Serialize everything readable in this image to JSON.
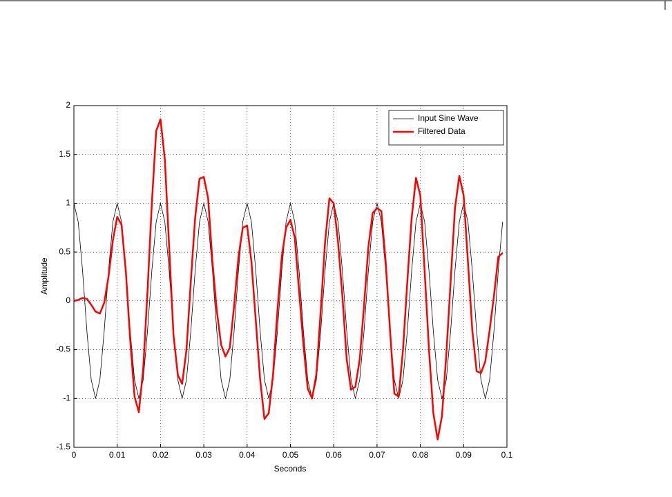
{
  "chart_data": {
    "type": "line",
    "xlabel": "Seconds",
    "ylabel": "Amplitude",
    "x": [
      0,
      0.001,
      0.002,
      0.003,
      0.004,
      0.005,
      0.006,
      0.007,
      0.008,
      0.009,
      0.01,
      0.011,
      0.012,
      0.013,
      0.014,
      0.015,
      0.016,
      0.017,
      0.018,
      0.019,
      0.02,
      0.021,
      0.022,
      0.023,
      0.024,
      0.025,
      0.026,
      0.027,
      0.028,
      0.029,
      0.03,
      0.031,
      0.032,
      0.033,
      0.034,
      0.035,
      0.036,
      0.037,
      0.038,
      0.039,
      0.04,
      0.041,
      0.042,
      0.043,
      0.044,
      0.045,
      0.046,
      0.047,
      0.048,
      0.049,
      0.05,
      0.051,
      0.052,
      0.053,
      0.054,
      0.055,
      0.056,
      0.057,
      0.058,
      0.059,
      0.06,
      0.061,
      0.062,
      0.063,
      0.064,
      0.065,
      0.066,
      0.067,
      0.068,
      0.069,
      0.07,
      0.071,
      0.072,
      0.073,
      0.074,
      0.075,
      0.076,
      0.077,
      0.078,
      0.079,
      0.08,
      0.081,
      0.082,
      0.083,
      0.084,
      0.085,
      0.086,
      0.087,
      0.088,
      0.089,
      0.09,
      0.091,
      0.092,
      0.093,
      0.094,
      0.095,
      0.096,
      0.097,
      0.098,
      0.099
    ],
    "series": [
      {
        "name": "Input Sine Wave",
        "color": "#000000",
        "width": 0.8,
        "values": [
          1,
          0.809,
          0.309,
          -0.309,
          -0.809,
          -1,
          -0.809,
          -0.309,
          0.309,
          0.809,
          1,
          0.809,
          0.309,
          -0.309,
          -0.809,
          -1,
          -0.809,
          -0.309,
          0.309,
          0.809,
          1,
          0.809,
          0.309,
          -0.309,
          -0.809,
          -1,
          -0.809,
          -0.309,
          0.309,
          0.809,
          1,
          0.809,
          0.309,
          -0.309,
          -0.809,
          -1,
          -0.809,
          -0.309,
          0.309,
          0.809,
          1,
          0.809,
          0.309,
          -0.309,
          -0.809,
          -1,
          -0.809,
          -0.309,
          0.309,
          0.809,
          1,
          0.809,
          0.309,
          -0.309,
          -0.809,
          -1,
          -0.809,
          -0.309,
          0.309,
          0.809,
          1,
          0.809,
          0.309,
          -0.309,
          -0.809,
          -1,
          -0.809,
          -0.309,
          0.309,
          0.809,
          1,
          0.809,
          0.309,
          -0.309,
          -0.809,
          -1,
          -0.809,
          -0.309,
          0.309,
          0.809,
          1,
          0.809,
          0.309,
          -0.309,
          -0.809,
          -1,
          -0.809,
          -0.309,
          0.309,
          0.809,
          1,
          0.809,
          0.309,
          -0.309,
          -0.809,
          -1,
          -0.809,
          -0.309,
          0.309,
          0.809
        ]
      },
      {
        "name": "Filtered Data",
        "color": "#ff0000",
        "width": 2.5,
        "values": [
          0,
          0.01,
          0.03,
          0.02,
          -0.04,
          -0.11,
          -0.13,
          -0.02,
          0.25,
          0.62,
          0.86,
          0.78,
          0.3,
          -0.4,
          -0.98,
          -1.14,
          -0.7,
          0.1,
          1.0,
          1.74,
          1.86,
          1.45,
          0.55,
          -0.35,
          -0.76,
          -0.85,
          -0.5,
          0.2,
          0.85,
          1.25,
          1.27,
          1.05,
          0.4,
          -0.1,
          -0.45,
          -0.57,
          -0.48,
          -0.05,
          0.45,
          0.75,
          0.77,
          0.4,
          -0.2,
          -0.8,
          -1.21,
          -1.15,
          -0.75,
          -0.1,
          0.45,
          0.75,
          0.83,
          0.65,
          0.1,
          -0.45,
          -0.9,
          -1.0,
          -0.75,
          -0.1,
          0.6,
          1.05,
          1.0,
          0.6,
          0.05,
          -0.6,
          -0.91,
          -0.88,
          -0.6,
          -0.05,
          0.55,
          0.9,
          0.95,
          0.92,
          0.4,
          -0.3,
          -0.95,
          -0.98,
          -0.5,
          0.2,
          0.85,
          1.26,
          1.08,
          0.3,
          -0.5,
          -1.15,
          -1.42,
          -1.18,
          -0.55,
          0.2,
          0.95,
          1.28,
          1.08,
          0.4,
          -0.3,
          -0.72,
          -0.74,
          -0.62,
          -0.3,
          0.05,
          0.45,
          0.49
        ]
      }
    ],
    "xlim": [
      0,
      0.1
    ],
    "xticks": [
      0,
      0.01,
      0.02,
      0.03,
      0.04,
      0.05,
      0.06,
      0.07,
      0.08,
      0.09,
      0.1
    ],
    "ylim": [
      -1.5,
      2
    ],
    "yticks": [
      -1.5,
      -1,
      -0.5,
      0,
      0.5,
      1,
      1.5,
      2
    ],
    "grid": true,
    "legend": "top-right"
  }
}
